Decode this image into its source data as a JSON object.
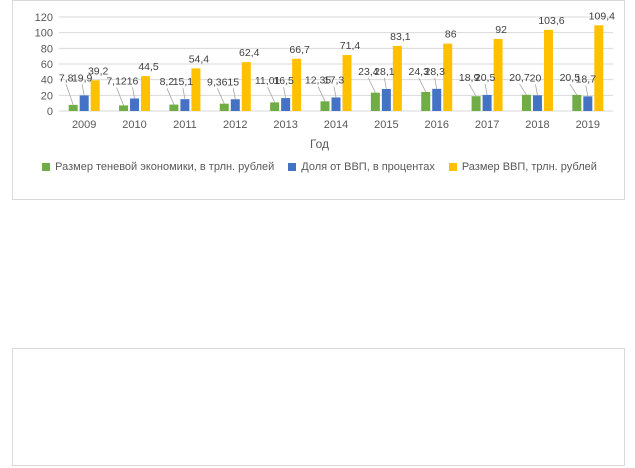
{
  "chart_data": {
    "type": "bar",
    "xlabel": "Год",
    "ylabel": "",
    "ylim": [
      0,
      120
    ],
    "yticks": [
      0,
      20,
      40,
      60,
      80,
      100,
      120
    ],
    "grid": true,
    "legend_position": "bottom",
    "categories": [
      "2009",
      "2010",
      "2011",
      "2012",
      "2013",
      "2014",
      "2015",
      "2016",
      "2017",
      "2018",
      "2019"
    ],
    "series": [
      {
        "name": "Размер теневой экономики, в трлн. рублей",
        "color": "#70ad47",
        "values": [
          7.8,
          7.12,
          8.2,
          9.36,
          11.01,
          12.35,
          23.4,
          24.3,
          18.9,
          20.7,
          20.5
        ],
        "labels": [
          "7,8",
          "7,12",
          "8,2",
          "9,36",
          "11,01",
          "12,35",
          "23,4",
          "24,3",
          "18,9",
          "20,7",
          "20,5"
        ]
      },
      {
        "name": "Доля от ВВП, в процентах",
        "color": "#4472c4",
        "values": [
          19.9,
          16,
          15.1,
          15,
          16.5,
          17.3,
          28.1,
          28.3,
          20.5,
          20,
          18.7
        ],
        "labels": [
          "19,9",
          "16",
          "15,1",
          "15",
          "16,5",
          "17,3",
          "28,1",
          "28,3",
          "20,5",
          "20",
          "18,7"
        ]
      },
      {
        "name": "Размер ВВП, трлн. рублей",
        "color": "#ffc000",
        "values": [
          39.2,
          44.5,
          54.4,
          62.4,
          66.7,
          71.4,
          83.1,
          86,
          92,
          103.6,
          109.4
        ],
        "labels": [
          "39,2",
          "44,5",
          "54,4",
          "62,4",
          "66,7",
          "71,4",
          "83,1",
          "86",
          "92",
          "103,6",
          "109,4"
        ]
      }
    ]
  }
}
